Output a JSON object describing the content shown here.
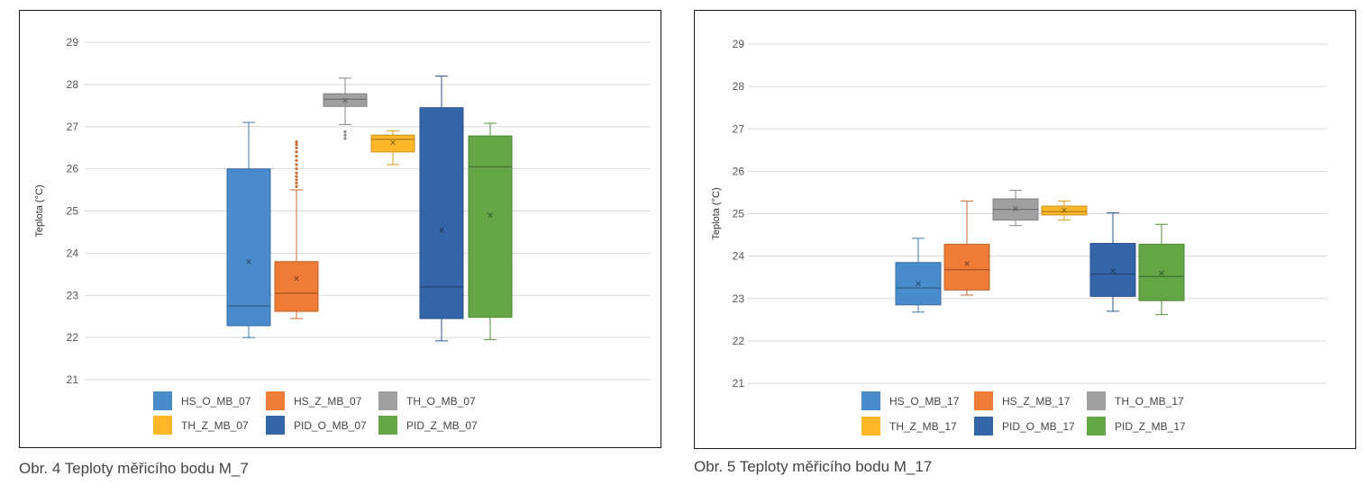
{
  "charts": [
    {
      "caption": "Obr. 4 Teploty měřicího bodu M_7",
      "chart_data": {
        "type": "box",
        "ylabel": "Teplota (°C)",
        "ylim": [
          21,
          29
        ],
        "yticks": [
          21,
          22,
          23,
          24,
          25,
          26,
          27,
          28,
          29
        ],
        "grid": true,
        "legend_position": "bottom",
        "series": [
          {
            "name": "HS_O_MB_07",
            "color": "#4a8ccb",
            "min": 22.0,
            "q1": 22.28,
            "median": 22.75,
            "q3": 26.0,
            "max": 27.1,
            "mean": 23.8,
            "outliers": []
          },
          {
            "name": "HS_Z_MB_07",
            "color": "#ee7b36",
            "min": 22.45,
            "q1": 22.62,
            "median": 23.05,
            "q3": 23.8,
            "max": 25.5,
            "mean": 23.4,
            "outliers": [
              25.58,
              25.66,
              25.74,
              25.82,
              25.9,
              26.0,
              26.1,
              26.2,
              26.3,
              26.4,
              26.5,
              26.58,
              26.64
            ]
          },
          {
            "name": "TH_O_MB_07",
            "color": "#a0a0a0",
            "min": 27.05,
            "q1": 27.48,
            "median": 27.65,
            "q3": 27.78,
            "max": 28.15,
            "mean": 27.62,
            "outliers": [
              26.72,
              26.8,
              26.88
            ]
          },
          {
            "name": "TH_Z_MB_07",
            "color": "#fdb728",
            "min": 26.1,
            "q1": 26.4,
            "median": 26.7,
            "q3": 26.8,
            "max": 26.9,
            "mean": 26.62,
            "outliers": []
          },
          {
            "name": "PID_O_MB_07",
            "color": "#3565a9",
            "min": 21.92,
            "q1": 22.45,
            "median": 23.2,
            "q3": 27.45,
            "max": 28.2,
            "mean": 24.55,
            "outliers": []
          },
          {
            "name": "PID_Z_MB_07",
            "color": "#64a646",
            "min": 21.95,
            "q1": 22.48,
            "median": 26.05,
            "q3": 26.78,
            "max": 27.08,
            "mean": 24.9,
            "outliers": []
          }
        ]
      }
    },
    {
      "caption": "Obr. 5 Teploty měřicího bodu M_17",
      "chart_data": {
        "type": "box",
        "ylabel": "Teplota (°C)",
        "ylim": [
          21,
          29
        ],
        "yticks": [
          21,
          22,
          23,
          24,
          25,
          26,
          27,
          28,
          29
        ],
        "grid": true,
        "legend_position": "bottom",
        "series": [
          {
            "name": "HS_O_MB_17",
            "color": "#4a8ccb",
            "min": 22.68,
            "q1": 22.85,
            "median": 23.25,
            "q3": 23.85,
            "max": 24.42,
            "mean": 23.35,
            "outliers": []
          },
          {
            "name": "HS_Z_MB_17",
            "color": "#ee7b36",
            "min": 23.08,
            "q1": 23.2,
            "median": 23.68,
            "q3": 24.28,
            "max": 25.3,
            "mean": 23.82,
            "outliers": []
          },
          {
            "name": "TH_O_MB_17",
            "color": "#a0a0a0",
            "min": 24.72,
            "q1": 24.85,
            "median": 25.1,
            "q3": 25.35,
            "max": 25.55,
            "mean": 25.12,
            "outliers": []
          },
          {
            "name": "TH_Z_MB_17",
            "color": "#fdb728",
            "min": 24.85,
            "q1": 24.97,
            "median": 25.05,
            "q3": 25.18,
            "max": 25.3,
            "mean": 25.08,
            "outliers": []
          },
          {
            "name": "PID_O_MB_17",
            "color": "#3565a9",
            "min": 22.7,
            "q1": 23.05,
            "median": 23.58,
            "q3": 24.3,
            "max": 25.02,
            "mean": 23.65,
            "outliers": []
          },
          {
            "name": "PID_Z_MB_17",
            "color": "#64a646",
            "min": 22.62,
            "q1": 22.95,
            "median": 23.52,
            "q3": 24.28,
            "max": 24.75,
            "mean": 23.6,
            "outliers": []
          }
        ]
      }
    }
  ]
}
